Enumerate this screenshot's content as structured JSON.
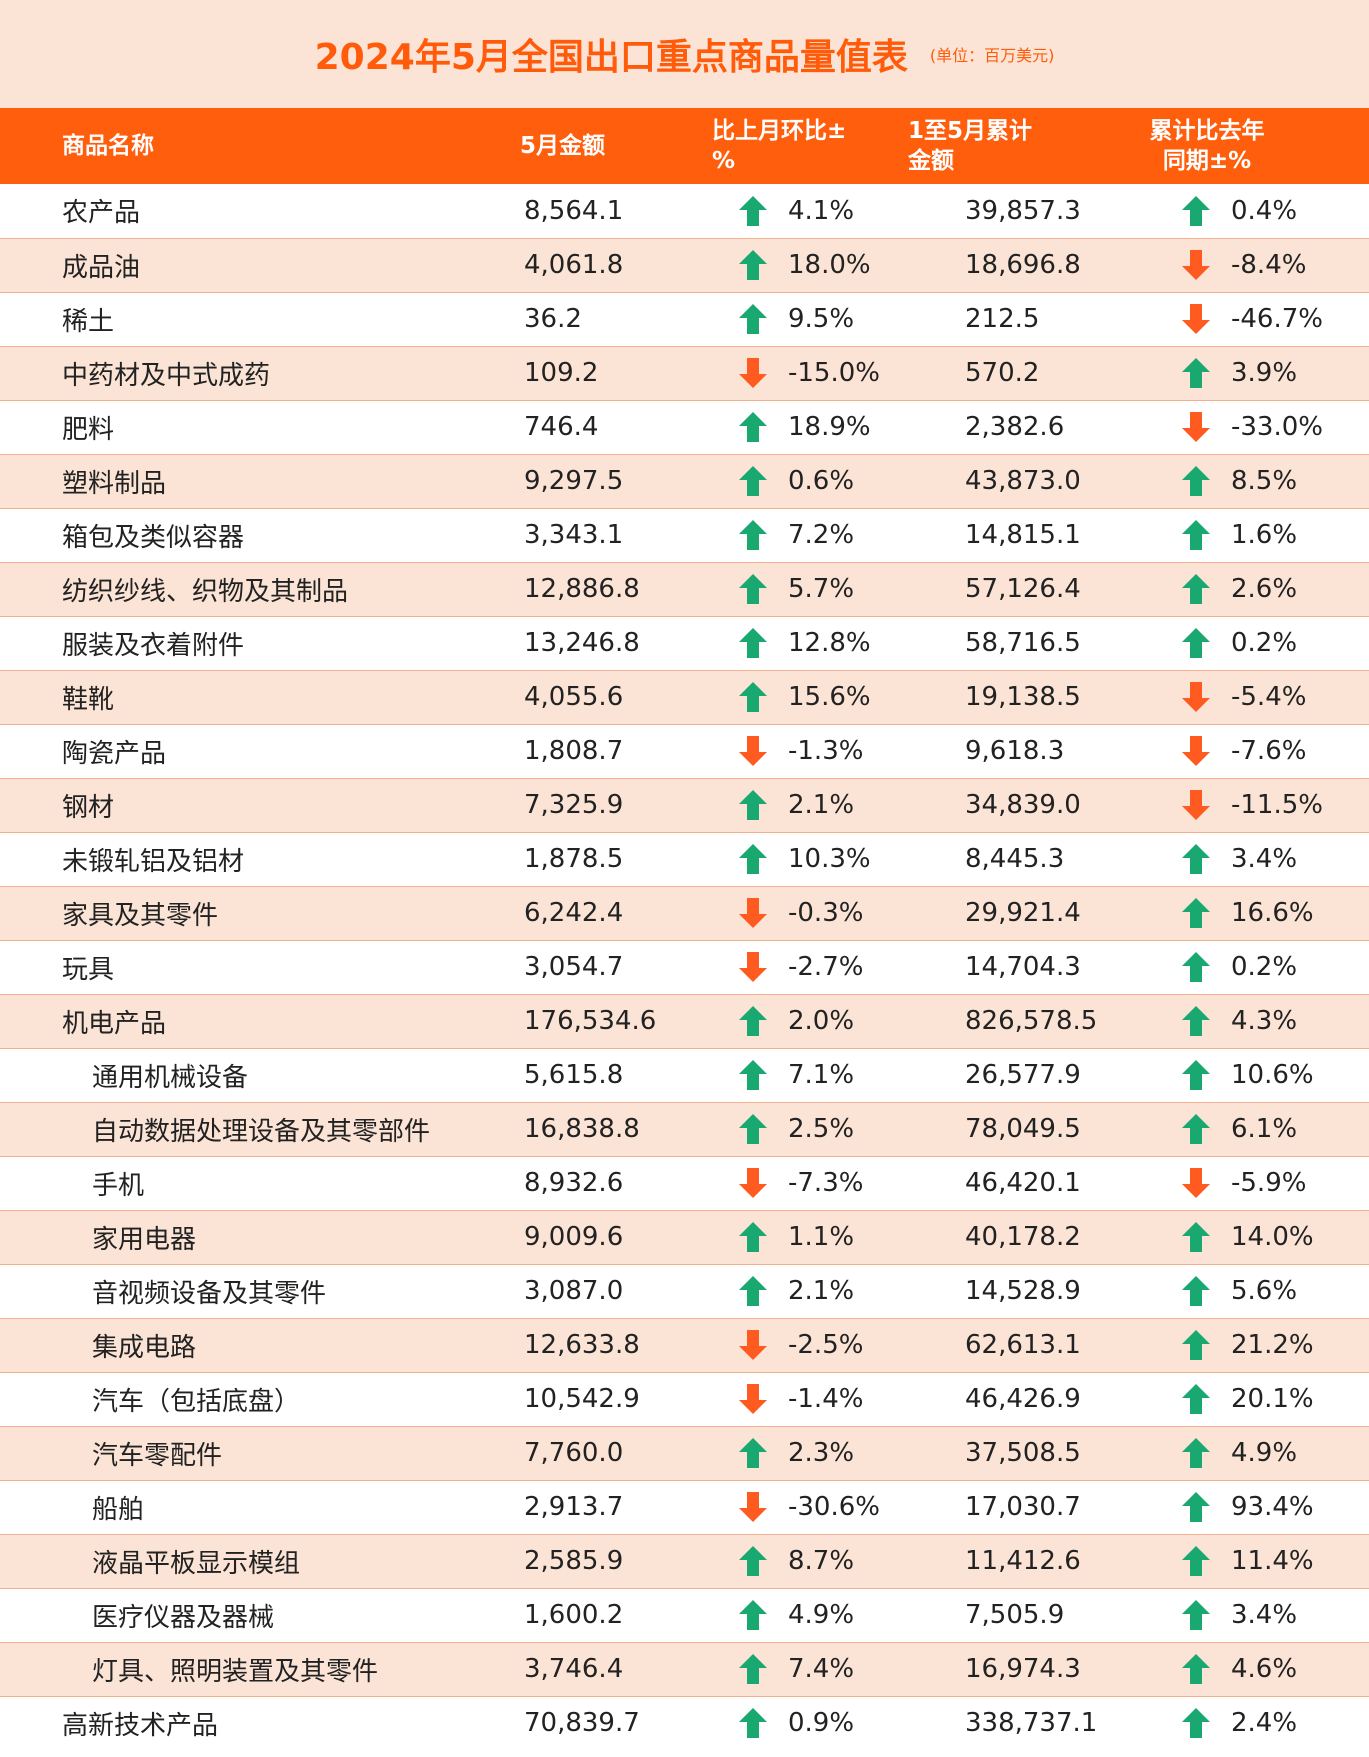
{
  "title": "2024年5月全国出口重点商品量值表",
  "unit": "(单位：百万美元)",
  "headers": {
    "name": "商品名称",
    "may_amount": "5月金额",
    "mom": "比上月环比±%",
    "ytd_amount": "1至5月累计金额",
    "yoy_line1": "累计比去年",
    "yoy_line2": "同期±%"
  },
  "colors": {
    "accent": "#ff5f0d",
    "band": "#fbe4d6",
    "up_arrow": "#1aa871",
    "down_arrow": "#ff5a1f"
  },
  "rows": [
    {
      "name": "农产品",
      "sub": false,
      "may": "8,564.1",
      "mom": "4.1%",
      "mom_dir": "up",
      "ytd": "39,857.3",
      "yoy": "0.4%",
      "yoy_dir": "up"
    },
    {
      "name": "成品油",
      "sub": false,
      "may": "4,061.8",
      "mom": "18.0%",
      "mom_dir": "up",
      "ytd": "18,696.8",
      "yoy": "-8.4%",
      "yoy_dir": "down"
    },
    {
      "name": "稀土",
      "sub": false,
      "may": "36.2",
      "mom": "9.5%",
      "mom_dir": "up",
      "ytd": "212.5",
      "yoy": "-46.7%",
      "yoy_dir": "down"
    },
    {
      "name": "中药材及中式成药",
      "sub": false,
      "may": "109.2",
      "mom": "-15.0%",
      "mom_dir": "down",
      "ytd": "570.2",
      "yoy": "3.9%",
      "yoy_dir": "up"
    },
    {
      "name": "肥料",
      "sub": false,
      "may": "746.4",
      "mom": "18.9%",
      "mom_dir": "up",
      "ytd": "2,382.6",
      "yoy": "-33.0%",
      "yoy_dir": "down"
    },
    {
      "name": "塑料制品",
      "sub": false,
      "may": "9,297.5",
      "mom": "0.6%",
      "mom_dir": "up",
      "ytd": "43,873.0",
      "yoy": "8.5%",
      "yoy_dir": "up"
    },
    {
      "name": "箱包及类似容器",
      "sub": false,
      "may": "3,343.1",
      "mom": "7.2%",
      "mom_dir": "up",
      "ytd": "14,815.1",
      "yoy": "1.6%",
      "yoy_dir": "up"
    },
    {
      "name": "纺织纱线、织物及其制品",
      "sub": false,
      "may": "12,886.8",
      "mom": "5.7%",
      "mom_dir": "up",
      "ytd": "57,126.4",
      "yoy": "2.6%",
      "yoy_dir": "up"
    },
    {
      "name": "服装及衣着附件",
      "sub": false,
      "may": "13,246.8",
      "mom": "12.8%",
      "mom_dir": "up",
      "ytd": "58,716.5",
      "yoy": "0.2%",
      "yoy_dir": "up"
    },
    {
      "name": "鞋靴",
      "sub": false,
      "may": "4,055.6",
      "mom": "15.6%",
      "mom_dir": "up",
      "ytd": "19,138.5",
      "yoy": "-5.4%",
      "yoy_dir": "down"
    },
    {
      "name": "陶瓷产品",
      "sub": false,
      "may": "1,808.7",
      "mom": "-1.3%",
      "mom_dir": "down",
      "ytd": "9,618.3",
      "yoy": "-7.6%",
      "yoy_dir": "down"
    },
    {
      "name": "钢材",
      "sub": false,
      "may": "7,325.9",
      "mom": "2.1%",
      "mom_dir": "up",
      "ytd": "34,839.0",
      "yoy": "-11.5%",
      "yoy_dir": "down"
    },
    {
      "name": "未锻轧铝及铝材",
      "sub": false,
      "may": "1,878.5",
      "mom": "10.3%",
      "mom_dir": "up",
      "ytd": "8,445.3",
      "yoy": "3.4%",
      "yoy_dir": "up"
    },
    {
      "name": "家具及其零件",
      "sub": false,
      "may": "6,242.4",
      "mom": "-0.3%",
      "mom_dir": "down",
      "ytd": "29,921.4",
      "yoy": "16.6%",
      "yoy_dir": "up"
    },
    {
      "name": "玩具",
      "sub": false,
      "may": "3,054.7",
      "mom": "-2.7%",
      "mom_dir": "down",
      "ytd": "14,704.3",
      "yoy": "0.2%",
      "yoy_dir": "up"
    },
    {
      "name": "机电产品",
      "sub": false,
      "may": "176,534.6",
      "mom": "2.0%",
      "mom_dir": "up",
      "ytd": "826,578.5",
      "yoy": "4.3%",
      "yoy_dir": "up"
    },
    {
      "name": "通用机械设备",
      "sub": true,
      "may": "5,615.8",
      "mom": "7.1%",
      "mom_dir": "up",
      "ytd": "26,577.9",
      "yoy": "10.6%",
      "yoy_dir": "up"
    },
    {
      "name": "自动数据处理设备及其零部件",
      "sub": true,
      "may": "16,838.8",
      "mom": "2.5%",
      "mom_dir": "up",
      "ytd": "78,049.5",
      "yoy": "6.1%",
      "yoy_dir": "up"
    },
    {
      "name": "手机",
      "sub": true,
      "may": "8,932.6",
      "mom": "-7.3%",
      "mom_dir": "down",
      "ytd": "46,420.1",
      "yoy": "-5.9%",
      "yoy_dir": "down"
    },
    {
      "name": "家用电器",
      "sub": true,
      "may": "9,009.6",
      "mom": "1.1%",
      "mom_dir": "up",
      "ytd": "40,178.2",
      "yoy": "14.0%",
      "yoy_dir": "up"
    },
    {
      "name": "音视频设备及其零件",
      "sub": true,
      "may": "3,087.0",
      "mom": "2.1%",
      "mom_dir": "up",
      "ytd": "14,528.9",
      "yoy": "5.6%",
      "yoy_dir": "up"
    },
    {
      "name": "集成电路",
      "sub": true,
      "may": "12,633.8",
      "mom": "-2.5%",
      "mom_dir": "down",
      "ytd": "62,613.1",
      "yoy": "21.2%",
      "yoy_dir": "up"
    },
    {
      "name": "汽车（包括底盘）",
      "sub": true,
      "may": "10,542.9",
      "mom": "-1.4%",
      "mom_dir": "down",
      "ytd": "46,426.9",
      "yoy": "20.1%",
      "yoy_dir": "up"
    },
    {
      "name": "汽车零配件",
      "sub": true,
      "may": "7,760.0",
      "mom": "2.3%",
      "mom_dir": "up",
      "ytd": "37,508.5",
      "yoy": "4.9%",
      "yoy_dir": "up"
    },
    {
      "name": "船舶",
      "sub": true,
      "may": "2,913.7",
      "mom": "-30.6%",
      "mom_dir": "down",
      "ytd": "17,030.7",
      "yoy": "93.4%",
      "yoy_dir": "up"
    },
    {
      "name": "液晶平板显示模组",
      "sub": true,
      "may": "2,585.9",
      "mom": "8.7%",
      "mom_dir": "up",
      "ytd": "11,412.6",
      "yoy": "11.4%",
      "yoy_dir": "up"
    },
    {
      "name": "医疗仪器及器械",
      "sub": true,
      "may": "1,600.2",
      "mom": "4.9%",
      "mom_dir": "up",
      "ytd": "7,505.9",
      "yoy": "3.4%",
      "yoy_dir": "up"
    },
    {
      "name": "灯具、照明装置及其零件",
      "sub": true,
      "may": "3,746.4",
      "mom": "7.4%",
      "mom_dir": "up",
      "ytd": "16,974.3",
      "yoy": "4.6%",
      "yoy_dir": "up"
    },
    {
      "name": "高新技术产品",
      "sub": false,
      "may": "70,839.7",
      "mom": "0.9%",
      "mom_dir": "up",
      "ytd": "338,737.1",
      "yoy": "2.4%",
      "yoy_dir": "up"
    }
  ]
}
